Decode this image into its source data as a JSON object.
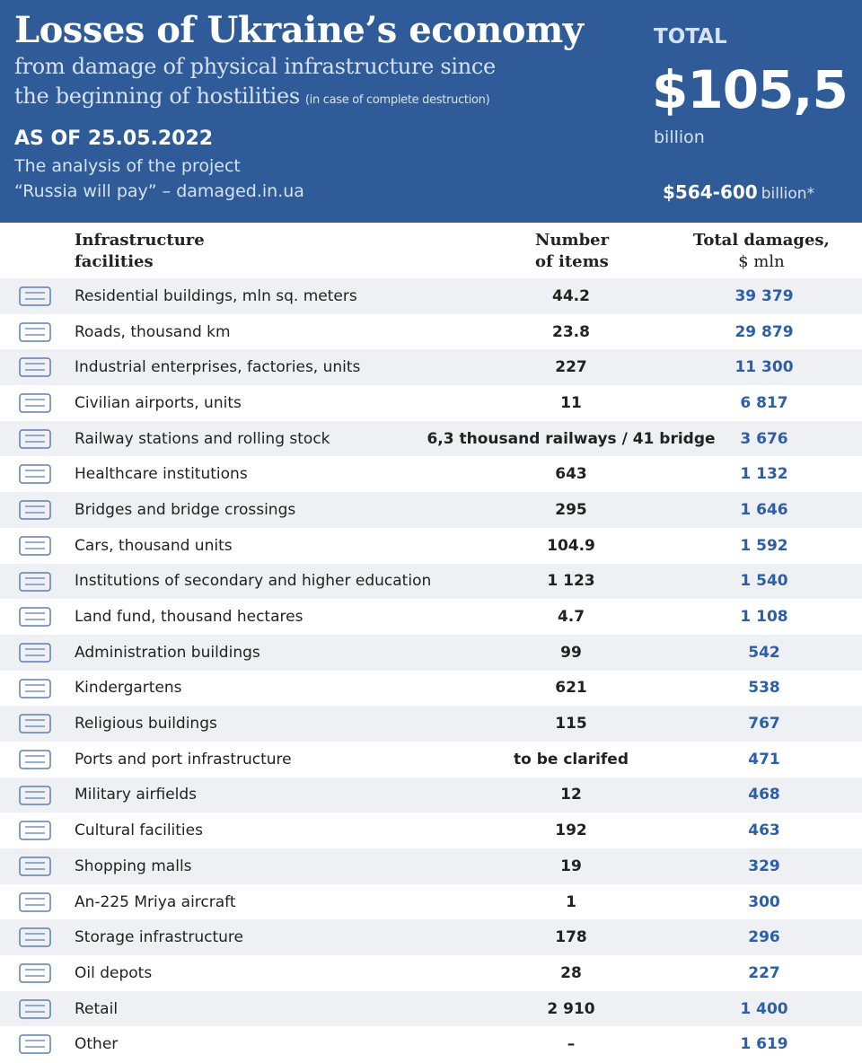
{
  "header": {
    "title": "Losses of Ukraine’s economy",
    "subtitle_lines": [
      "from damage of physical infrastructure since",
      "the beginning of hostilities"
    ],
    "note": "(in case of complete destruction)",
    "date": "AS OF 25.05.2022",
    "source_lines": [
      "The analysis of the project",
      "“Russia will pay” – damaged.in.ua"
    ],
    "total_label": "TOTAL",
    "total_value": "$105,5",
    "total_unit": "billion",
    "range_value": "$564-600",
    "range_unit": "billion*"
  },
  "table": {
    "columns": [
      [
        "Infrastructure",
        "facilities"
      ],
      [
        "Number",
        "of items"
      ],
      [
        "Total damages,",
        "$ mln"
      ]
    ],
    "rows": [
      [
        "Residential buildings, mln sq. meters",
        "44.2",
        "39 379"
      ],
      [
        "Roads, thousand km",
        "23.8",
        "29 879"
      ],
      [
        "Industrial enterprises, factories, units",
        "227",
        "11 300"
      ],
      [
        "Civilian airports, units",
        "11",
        "6 817"
      ],
      [
        "Railway stations and rolling stock",
        "6,3 thousand railways / 41 bridge",
        "3 676"
      ],
      [
        "Healthcare institutions",
        "643",
        "1 132"
      ],
      [
        "Bridges and bridge crossings",
        "295",
        "1 646"
      ],
      [
        "Cars, thousand units",
        "104.9",
        "1 592"
      ],
      [
        "Institutions of secondary and higher education",
        "1 123",
        "1 540"
      ],
      [
        "Land fund, thousand hectares",
        "4.7",
        "1 108"
      ],
      [
        "Administration buildings",
        "99",
        "542"
      ],
      [
        "Kindergartens",
        "621",
        "538"
      ],
      [
        "Religious buildings",
        "115",
        "767"
      ],
      [
        "Ports and port infrastructure",
        "to be clarifed",
        "471"
      ],
      [
        "Military airfields",
        "12",
        "468"
      ],
      [
        "Cultural facilities",
        "192",
        "463"
      ],
      [
        "Shopping malls",
        "19",
        "329"
      ],
      [
        "An-225 Mriya aircraft",
        "1",
        "300"
      ],
      [
        "Storage infrastructure",
        "178",
        "296"
      ],
      [
        "Oil depots",
        "28",
        "227"
      ],
      [
        "Retail",
        "2 910",
        "1 400"
      ],
      [
        "Other",
        "–",
        "1 619"
      ]
    ]
  }
}
